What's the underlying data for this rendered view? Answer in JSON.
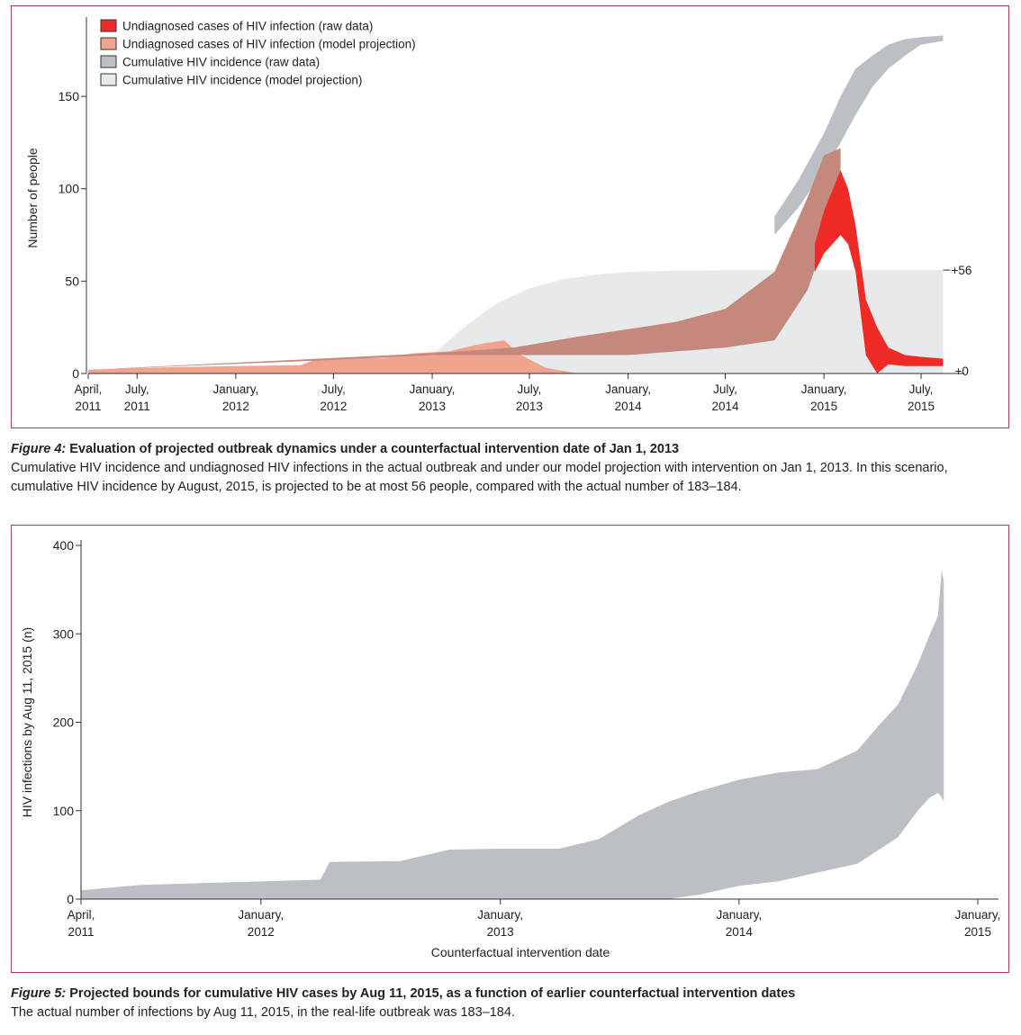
{
  "colors": {
    "frame": "#a63a6a",
    "undiagnosed_raw": "#ee2b26",
    "undiagnosed_model": "#f0a48e",
    "undiagnosed_overlap": "#c4887d",
    "cumulative_raw": "#bcc0c4",
    "cumulative_model": "#e8e9ea"
  },
  "figure4": {
    "caption_label": "Figure 4:",
    "caption_title": "Evaluation of projected outbreak dynamics under a counterfactual intervention date of Jan 1, 2013",
    "caption_text": "Cumulative HIV incidence and undiagnosed HIV infections in the actual outbreak and under our model projection with intervention on Jan 1, 2013. In this scenario, cumulative HIV incidence by August, 2015, is projected to be at most 56 people, compared with the actual number of 183–184."
  },
  "figure5": {
    "caption_label": "Figure 5:",
    "caption_title": "Projected bounds for cumulative HIV cases by Aug 11, 2015, as a function of earlier counterfactual intervention dates",
    "caption_text": "The actual number of infections by Aug 11, 2015, in the real-life outbreak was 183–184."
  },
  "chart_data": [
    {
      "type": "area",
      "title": "",
      "xlabel": "",
      "ylabel": "Number of people",
      "x_tick_labels": [
        [
          "April,",
          "2011"
        ],
        [
          "July,",
          "2011"
        ],
        [
          "January,",
          "2012"
        ],
        [
          "July,",
          "2012"
        ],
        [
          "January,",
          "2013"
        ],
        [
          "July,",
          "2013"
        ],
        [
          "January,",
          "2014"
        ],
        [
          "July,",
          "2014"
        ],
        [
          "January,",
          "2015"
        ],
        [
          "July,",
          "2015"
        ]
      ],
      "x_tick_dates": [
        "2011-04-01",
        "2011-07-01",
        "2012-01-01",
        "2012-07-01",
        "2013-01-01",
        "2013-07-01",
        "2014-01-01",
        "2014-07-01",
        "2015-01-01",
        "2015-07-01"
      ],
      "xlim": [
        "2011-04-01",
        "2015-09-01"
      ],
      "y_ticks": [
        0,
        50,
        100,
        150
      ],
      "ylim": [
        0,
        190
      ],
      "legend_position": "top-left",
      "legend": [
        "Undiagnosed cases of HIV infection (raw data)",
        "Undiagnosed cases of HIV infection (model projection)",
        "Cumulative HIV incidence (raw data)",
        "Cumulative HIV incidence (model projection)"
      ],
      "annotations": [
        "+56",
        "+0"
      ],
      "series": [
        {
          "name": "Cumulative HIV incidence (model projection)",
          "kind": "band",
          "x": [
            "2011-04-01",
            "2012-10-01",
            "2013-01-01",
            "2013-03-01",
            "2013-05-01",
            "2013-07-01",
            "2013-09-01",
            "2013-11-01",
            "2014-01-01",
            "2014-04-01",
            "2014-07-01",
            "2015-01-01",
            "2015-08-11"
          ],
          "lower": [
            0,
            0,
            0,
            0,
            0,
            0,
            0,
            0,
            0,
            0,
            0,
            0,
            0
          ],
          "upper": [
            0,
            0,
            10,
            25,
            38,
            46,
            51,
            53.5,
            55,
            55.7,
            56,
            56,
            56
          ]
        },
        {
          "name": "Cumulative HIV incidence (raw data)",
          "kind": "band",
          "x": [
            "2014-10-01",
            "2014-11-15",
            "2015-01-01",
            "2015-02-01",
            "2015-03-01",
            "2015-04-01",
            "2015-05-01",
            "2015-06-01",
            "2015-07-01",
            "2015-08-11"
          ],
          "lower": [
            75,
            90,
            110,
            125,
            140,
            155,
            165,
            172,
            178,
            180
          ],
          "upper": [
            85,
            105,
            130,
            150,
            165,
            172,
            178,
            181,
            182,
            183
          ]
        },
        {
          "name": "Undiagnosed cases of HIV infection (model projection)",
          "kind": "band",
          "x": [
            "2011-04-01",
            "2011-07-01",
            "2011-10-01",
            "2012-01-01",
            "2012-05-01",
            "2012-06-01",
            "2012-10-01",
            "2012-12-01",
            "2013-02-01",
            "2013-04-01",
            "2013-05-15",
            "2013-06-15",
            "2013-08-01",
            "2013-10-01"
          ],
          "lower": [
            0,
            0,
            0,
            0,
            0,
            0,
            0,
            0,
            0,
            0,
            0,
            0,
            0,
            0
          ],
          "upper": [
            2,
            3,
            3.5,
            4,
            4.5,
            8,
            8.5,
            11,
            12,
            16,
            18,
            10,
            3,
            0
          ]
        },
        {
          "name": "Undiagnosed overlap band",
          "kind": "band",
          "x": [
            "2011-04-01",
            "2012-06-01",
            "2013-01-01",
            "2013-06-01",
            "2013-10-01",
            "2014-01-01",
            "2014-04-01",
            "2014-07-01",
            "2014-10-01",
            "2014-12-01",
            "2015-01-01",
            "2015-02-01"
          ],
          "lower": [
            2,
            7,
            10,
            10,
            10,
            10,
            12,
            14,
            18,
            45,
            70,
            80
          ],
          "upper": [
            2,
            8,
            11,
            14,
            20,
            24,
            28,
            35,
            55,
            95,
            118,
            122
          ]
        },
        {
          "name": "Undiagnosed cases of HIV infection (raw data)",
          "kind": "band",
          "x": [
            "2014-12-15",
            "2015-01-01",
            "2015-02-01",
            "2015-02-15",
            "2015-03-01",
            "2015-03-20",
            "2015-04-10",
            "2015-05-01",
            "2015-06-01",
            "2015-07-01",
            "2015-08-11"
          ],
          "lower": [
            55,
            65,
            75,
            70,
            55,
            10,
            0,
            5,
            4,
            4,
            4
          ],
          "upper": [
            70,
            88,
            110,
            100,
            80,
            40,
            25,
            14,
            10,
            9,
            8
          ]
        }
      ]
    },
    {
      "type": "area",
      "title": "",
      "xlabel": "Counterfactual intervention date",
      "ylabel": "HIV infections by Aug 11, 2015 (n)",
      "x_tick_labels": [
        [
          "April,",
          "2011"
        ],
        [
          "January,",
          "2012"
        ],
        [
          "January,",
          "2013"
        ],
        [
          "January,",
          "2014"
        ],
        [
          "January,",
          "2015"
        ]
      ],
      "x_tick_dates": [
        "2011-04-01",
        "2012-01-01",
        "2013-01-01",
        "2014-01-01",
        "2015-01-01"
      ],
      "xlim": [
        "2011-04-01",
        "2015-01-01"
      ],
      "y_ticks": [
        0,
        100,
        200,
        300,
        400
      ],
      "ylim": [
        0,
        400
      ],
      "series": [
        {
          "name": "",
          "kind": "band",
          "x": [
            "2011-04-01",
            "2011-07-01",
            "2011-10-01",
            "2012-01-01",
            "2012-04-01",
            "2012-04-15",
            "2012-08-01",
            "2012-10-15",
            "2013-01-01",
            "2013-04-01",
            "2013-06-01",
            "2013-08-01",
            "2013-09-15",
            "2013-11-01",
            "2014-01-01",
            "2014-03-01",
            "2014-05-01",
            "2014-07-01",
            "2014-08-01",
            "2014-09-01",
            "2014-10-01",
            "2014-10-20",
            "2014-11-01",
            "2014-11-07",
            "2014-11-10"
          ],
          "lower": [
            0,
            0,
            0,
            0,
            0,
            0,
            0,
            0,
            0,
            0,
            0,
            0,
            0,
            5,
            15,
            20,
            30,
            40,
            55,
            70,
            100,
            115,
            120,
            115,
            110
          ],
          "upper": [
            10,
            16,
            18,
            20,
            22,
            42,
            43,
            56,
            57,
            57,
            68,
            95,
            110,
            122,
            135,
            143,
            147,
            168,
            195,
            220,
            265,
            300,
            320,
            372,
            360
          ]
        }
      ]
    }
  ]
}
